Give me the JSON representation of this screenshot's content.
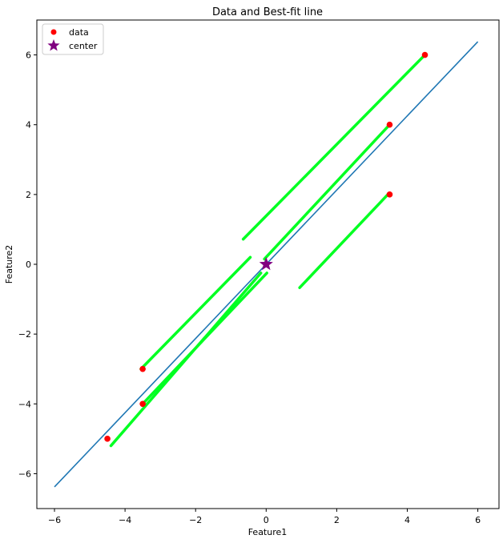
{
  "chart_data": {
    "type": "scatter",
    "title": "Data and Best-fit line",
    "xlabel": "Feature1",
    "ylabel": "Feature2",
    "xlim": [
      -6.5,
      6.6
    ],
    "ylim": [
      -7,
      7
    ],
    "xticks": [
      -6,
      -4,
      -2,
      0,
      2,
      4,
      6
    ],
    "xtick_labels": [
      "−6",
      "−4",
      "−2",
      "0",
      "2",
      "4",
      "6"
    ],
    "yticks": [
      -6,
      -4,
      -2,
      0,
      2,
      4,
      6
    ],
    "ytick_labels": [
      "−6",
      "−4",
      "−2",
      "0",
      "2",
      "4",
      "6"
    ],
    "grid": false,
    "legend_position": "upper-left",
    "series": [
      {
        "name": "data",
        "kind": "scatter",
        "marker": "circle",
        "color": "#ff0000",
        "points": [
          [
            -4.5,
            -5
          ],
          [
            -3.5,
            -4
          ],
          [
            -3.5,
            -3
          ],
          [
            3.5,
            2
          ],
          [
            3.5,
            4
          ],
          [
            4.5,
            6
          ]
        ]
      },
      {
        "name": "center",
        "kind": "scatter",
        "marker": "star",
        "color": "#800080",
        "points": [
          [
            0,
            0
          ]
        ]
      }
    ],
    "best_fit_line": {
      "color": "#1f77b4",
      "points": [
        [
          -6,
          -6.38
        ],
        [
          6,
          6.38
        ]
      ]
    },
    "projection_segments": {
      "color": "#00ff22",
      "segments": [
        [
          [
            -4.4,
            -5.2
          ],
          [
            -0.15,
            -0.25
          ]
        ],
        [
          [
            -3.5,
            -4.0
          ],
          [
            0.02,
            -0.25
          ]
        ],
        [
          [
            -3.55,
            -3.0
          ],
          [
            -0.45,
            0.2
          ]
        ],
        [
          [
            -0.65,
            0.72
          ],
          [
            4.5,
            6.0
          ]
        ],
        [
          [
            -0.05,
            0.15
          ],
          [
            3.5,
            4.0
          ]
        ],
        [
          [
            0.95,
            -0.67
          ],
          [
            3.45,
            2.0
          ]
        ]
      ]
    }
  }
}
